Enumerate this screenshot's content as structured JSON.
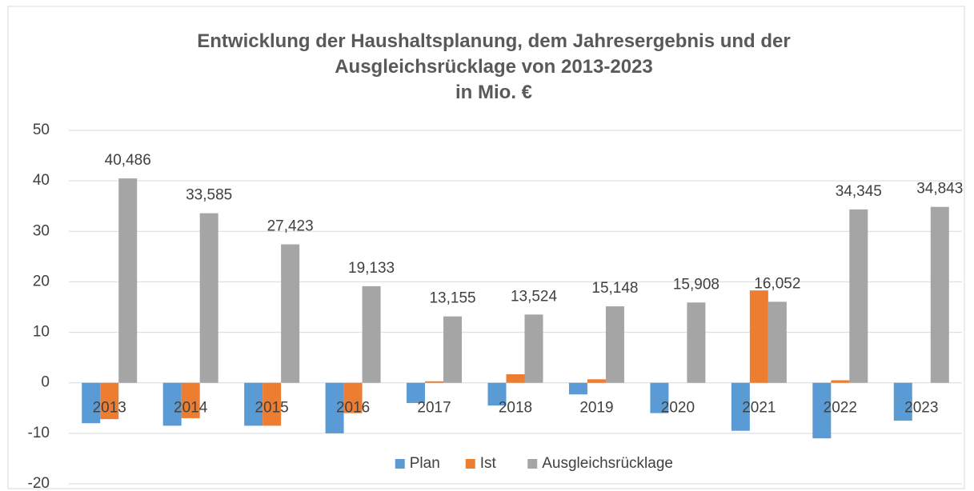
{
  "chart_data": {
    "type": "bar",
    "title": "Entwicklung der Haushaltsplanung, dem Jahresergebnis und der Ausgleichsrücklage von 2013-2023",
    "subtitle": "in Mio. €",
    "categories": [
      "2013",
      "2014",
      "2015",
      "2016",
      "2017",
      "2018",
      "2019",
      "2020",
      "2021",
      "2022",
      "2023"
    ],
    "series": [
      {
        "name": "Plan",
        "color": "#5b9bd5",
        "values": [
          -8.0,
          -8.5,
          -8.5,
          -10.0,
          -4.0,
          -4.5,
          -2.3,
          -6.0,
          -9.5,
          -11.0,
          -7.5
        ]
      },
      {
        "name": "Ist",
        "color": "#ed7d31",
        "values": [
          -7.2,
          -7.0,
          -8.5,
          -6.0,
          0.3,
          1.7,
          0.7,
          0,
          18.3,
          0.5,
          0
        ]
      },
      {
        "name": "Ausgleichsrücklage",
        "color": "#a5a5a5",
        "values": [
          40.486,
          33.585,
          27.423,
          19.133,
          13.155,
          13.524,
          15.148,
          15.908,
          16.052,
          34.345,
          34.843
        ],
        "value_labels": [
          "40,486",
          "33,585",
          "27,423",
          "19,133",
          "13,155",
          "13,524",
          "15,148",
          "15,908",
          "16,052",
          "34,345",
          "34,843"
        ]
      }
    ],
    "ylim": [
      -20,
      50
    ],
    "yticks": [
      -20,
      -10,
      0,
      10,
      20,
      30,
      40,
      50
    ],
    "grid": true,
    "legend": "bottom"
  }
}
